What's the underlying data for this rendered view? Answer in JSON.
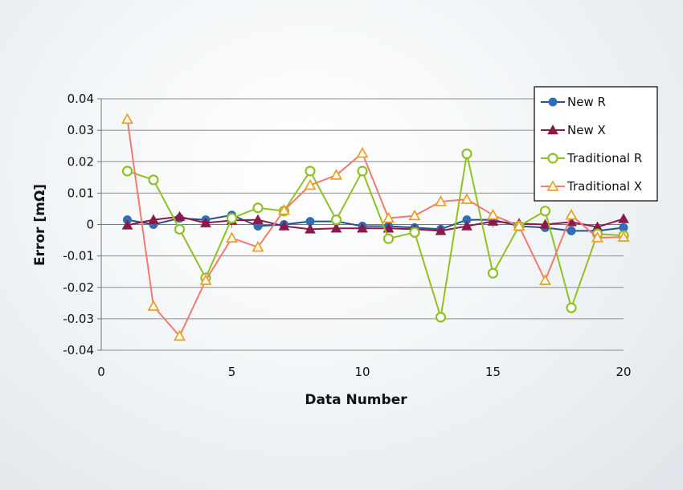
{
  "chart_data": {
    "type": "line",
    "xlabel": "Data Number",
    "ylabel": "Error [mΩ]",
    "xlim": [
      0,
      20
    ],
    "ylim": [
      -0.04,
      0.04
    ],
    "xticks": [
      0,
      5,
      10,
      15,
      20
    ],
    "xtick_labels": [
      "0",
      "5",
      "10",
      "15",
      "20"
    ],
    "yticks": [
      -0.04,
      -0.03,
      -0.02,
      -0.01,
      0,
      0.01,
      0.02,
      0.03,
      0.04
    ],
    "ytick_labels": [
      "-0.04",
      "-0.03",
      "-0.02",
      "-0.01",
      "0",
      "0.01",
      "0.02",
      "0.03",
      "0.04"
    ],
    "grid": "horizontal",
    "legend_position": "top-right",
    "x": [
      1,
      2,
      3,
      4,
      5,
      6,
      7,
      8,
      9,
      10,
      11,
      12,
      13,
      14,
      15,
      16,
      17,
      18,
      19,
      20
    ],
    "series": [
      {
        "name": "New R",
        "color": "#2f6fb6",
        "line_color": "#28508a",
        "marker": "circle-filled",
        "values": [
          0.0015,
          0.0,
          0.002,
          0.0015,
          0.003,
          -0.0005,
          0.0,
          0.001,
          0.001,
          -0.0005,
          -0.0005,
          -0.001,
          -0.0015,
          0.0015,
          0.0015,
          -0.0005,
          -0.001,
          -0.002,
          -0.002,
          -0.001
        ]
      },
      {
        "name": "New X",
        "color": "#8b1a4a",
        "line_color": "#8b1a4a",
        "marker": "triangle-filled",
        "values": [
          -0.0002,
          0.0015,
          0.0025,
          0.0005,
          0.0013,
          0.0015,
          -0.0005,
          -0.0015,
          -0.0012,
          -0.0012,
          -0.0012,
          -0.0015,
          -0.002,
          -0.0005,
          0.001,
          0.0003,
          0.0,
          0.0008,
          -0.0008,
          0.0018
        ]
      },
      {
        "name": "Traditional R",
        "color": "#8ec31f",
        "line_color": "#8ec31f",
        "marker": "circle-open",
        "values": [
          0.017,
          0.0142,
          -0.0015,
          -0.017,
          0.002,
          0.0053,
          0.0043,
          0.017,
          0.0015,
          0.017,
          -0.0045,
          -0.0025,
          -0.0295,
          0.0225,
          -0.0155,
          -0.0005,
          0.0043,
          -0.0265,
          -0.003,
          -0.0035
        ]
      },
      {
        "name": "Traditional X",
        "color": "#f0a020",
        "line_color": "#f27a6e",
        "marker": "triangle-open",
        "values": [
          0.0335,
          -0.026,
          -0.0355,
          -0.0178,
          -0.0043,
          -0.0072,
          0.0045,
          0.0125,
          0.0157,
          0.0227,
          0.002,
          0.0028,
          0.0073,
          0.008,
          0.003,
          -0.0005,
          -0.0178,
          0.003,
          -0.0042,
          -0.004
        ]
      }
    ]
  }
}
